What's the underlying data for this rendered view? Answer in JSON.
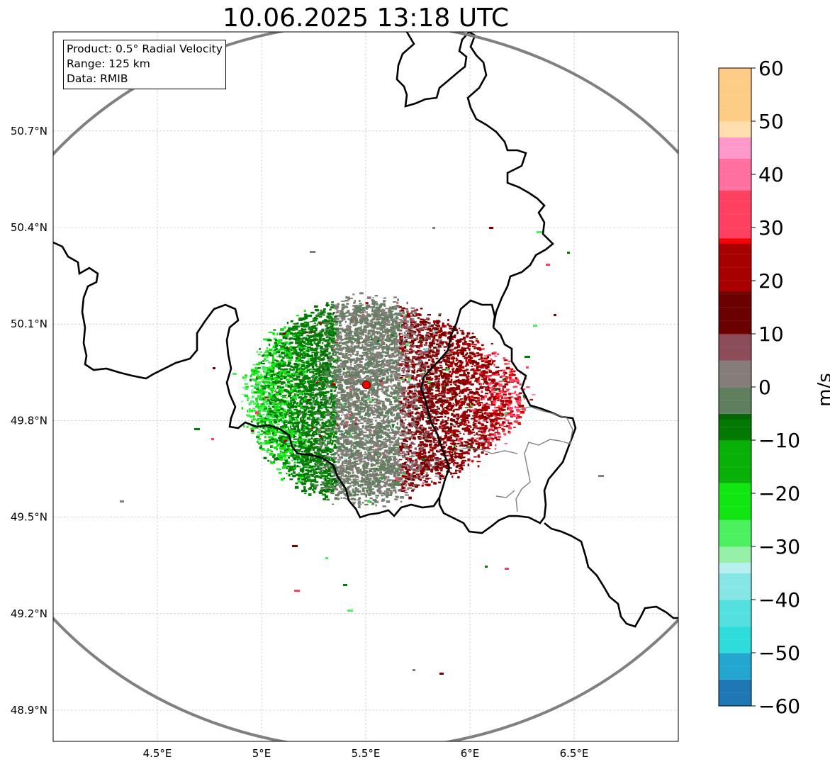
{
  "title": "10.06.2025 13:18 UTC",
  "info": {
    "product": "Product: 0.5° Radial Velocity",
    "range": "Range: 125 km",
    "data": "Data: RMIB"
  },
  "lat_ticks": [
    "48.9°N",
    "49.2°N",
    "49.5°N",
    "49.8°N",
    "50.1°N",
    "50.4°N",
    "50.7°N"
  ],
  "lat_values": [
    48.9,
    49.2,
    49.5,
    49.8,
    50.1,
    50.4,
    50.7
  ],
  "lon_ticks": [
    "4.5°E",
    "5°E",
    "5.5°E",
    "6°E",
    "6.5°E"
  ],
  "lon_values": [
    4.5,
    5.0,
    5.5,
    6.0,
    6.5
  ],
  "extent": {
    "lon": [
      4.0,
      7.0
    ],
    "lat": [
      48.8,
      51.0
    ]
  },
  "radar_site": {
    "lon": 5.505,
    "lat": 49.914
  },
  "range_km": 125,
  "colorbar": {
    "label": "m/s",
    "ticks": [
      "60",
      "50",
      "40",
      "30",
      "20",
      "10",
      "0",
      "−10",
      "−20",
      "−30",
      "−40",
      "−50",
      "−60"
    ],
    "tick_values": [
      60,
      50,
      40,
      30,
      20,
      10,
      0,
      -10,
      -20,
      -30,
      -40,
      -50,
      -60
    ],
    "range": [
      -60,
      60
    ],
    "stops": [
      {
        "v": -60,
        "c": "#1f77b4"
      },
      {
        "v": -55,
        "c": "#23a6cf"
      },
      {
        "v": -50,
        "c": "#2fdcdc"
      },
      {
        "v": -45,
        "c": "#55e0e0"
      },
      {
        "v": -40,
        "c": "#86e6e6"
      },
      {
        "v": -35,
        "c": "#b8efef"
      },
      {
        "v": -33,
        "c": "#96f0a8"
      },
      {
        "v": -30,
        "c": "#4cf060"
      },
      {
        "v": -25,
        "c": "#12e612"
      },
      {
        "v": -18,
        "c": "#08b008"
      },
      {
        "v": -10,
        "c": "#027a02"
      },
      {
        "v": -6,
        "c": "#056505"
      },
      {
        "v": -5,
        "c": "#5f7f5f"
      },
      {
        "v": 0,
        "c": "#857d79"
      },
      {
        "v": 5,
        "c": "#8c4d58"
      },
      {
        "v": 10,
        "c": "#6b0000"
      },
      {
        "v": 18,
        "c": "#a80000"
      },
      {
        "v": 27,
        "c": "#f00000"
      },
      {
        "v": 28,
        "c": "#ff4060"
      },
      {
        "v": 37,
        "c": "#ff70a0"
      },
      {
        "v": 43,
        "c": "#ff99cc"
      },
      {
        "v": 47,
        "c": "#ffdfb0"
      },
      {
        "v": 50,
        "c": "#ffcc88"
      },
      {
        "v": 60,
        "c": "#ff9955"
      }
    ]
  },
  "colors": {
    "range_ring": "#808080",
    "border": "#000000",
    "region_border": "#808080",
    "radar_marker": "#ff0000",
    "approaching": "#027a02",
    "receding": "#7a0000",
    "near_zero": "#857d79"
  }
}
